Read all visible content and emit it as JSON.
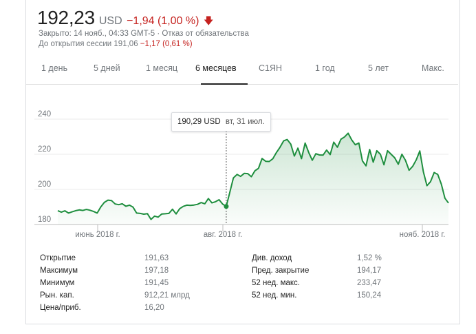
{
  "quote": {
    "price": "192,23",
    "currency": "USD",
    "change": "−1,94 (1,00 %)",
    "closed_line": "Закрыто: 14 нояб., 04:33 GMT-5 · Отказ от обязательства",
    "preopen_label": "До открытия сессии 191,06",
    "preopen_change": "−1,17 (0,61 %)",
    "negative_color": "#c5221f"
  },
  "tabs": [
    {
      "label": "1 день"
    },
    {
      "label": "5 дней"
    },
    {
      "label": "1 месяц"
    },
    {
      "label": "6 месяцев"
    },
    {
      "label": "С1ЯН"
    },
    {
      "label": "1 год"
    },
    {
      "label": "5 лет"
    },
    {
      "label": "Макс."
    }
  ],
  "active_tab": "6 месяцев",
  "tooltip": {
    "price": "190,29 USD",
    "date": "вт, 31 июл."
  },
  "chart_data": {
    "type": "area",
    "color": "#1e8e3e",
    "ylim": [
      180,
      240
    ],
    "y_ticks": [
      "180",
      "200",
      "220",
      "240"
    ],
    "x_ticks": [
      "июнь 2018 г.",
      "авг. 2018 г.",
      "нояб. 2018 г."
    ],
    "grid": true,
    "highlight_index": 47,
    "values": [
      187.9,
      187.0,
      187.8,
      186.5,
      187.2,
      187.9,
      188.3,
      188.0,
      188.6,
      188.1,
      187.4,
      186.5,
      190.0,
      192.6,
      193.9,
      193.6,
      191.7,
      191.3,
      191.8,
      190.4,
      191.0,
      189.9,
      186.5,
      186.3,
      185.9,
      186.2,
      182.9,
      184.8,
      184.2,
      186.0,
      186.1,
      186.3,
      188.7,
      186.0,
      189.0,
      190.3,
      191.0,
      190.9,
      191.1,
      191.5,
      192.5,
      191.8,
      194.8,
      192.3,
      193.0,
      194.1,
      191.6,
      190.3,
      198.3,
      206.5,
      208.5,
      207.4,
      209.1,
      209.0,
      207.2,
      210.6,
      212.0,
      217.6,
      216.0,
      215.9,
      217.5,
      221.0,
      224.0,
      227.6,
      228.4,
      225.8,
      219.0,
      223.5,
      217.5,
      226.4,
      221.0,
      216.6,
      220.3,
      219.6,
      219.5,
      222.4,
      219.8,
      226.9,
      224.0,
      228.6,
      229.9,
      232.0,
      228.2,
      225.4,
      226.4,
      216.2,
      213.4,
      222.7,
      215.5,
      222.0,
      220.0,
      214.0,
      222.0,
      220.0,
      218.0,
      214.3,
      220.0,
      216.5,
      210.9,
      213.1,
      216.8,
      221.9,
      210.0,
      202.1,
      204.4,
      209.6,
      208.5,
      203.0,
      195.0,
      192.23
    ]
  },
  "stats": {
    "left": [
      {
        "label": "Открытие",
        "value": "191,63"
      },
      {
        "label": "Максимум",
        "value": "197,18"
      },
      {
        "label": "Минимум",
        "value": "191,45"
      },
      {
        "label": "Рын. кап.",
        "value": "912,21 млрд"
      },
      {
        "label": "Цена/приб.",
        "value": "16,20"
      }
    ],
    "right": [
      {
        "label": "Див. доход",
        "value": "1,52 %"
      },
      {
        "label": "Пред. закрытие",
        "value": "194,17"
      },
      {
        "label": "52 нед. макс.",
        "value": "233,47"
      },
      {
        "label": "52 нед. мин.",
        "value": "150,24"
      }
    ]
  }
}
